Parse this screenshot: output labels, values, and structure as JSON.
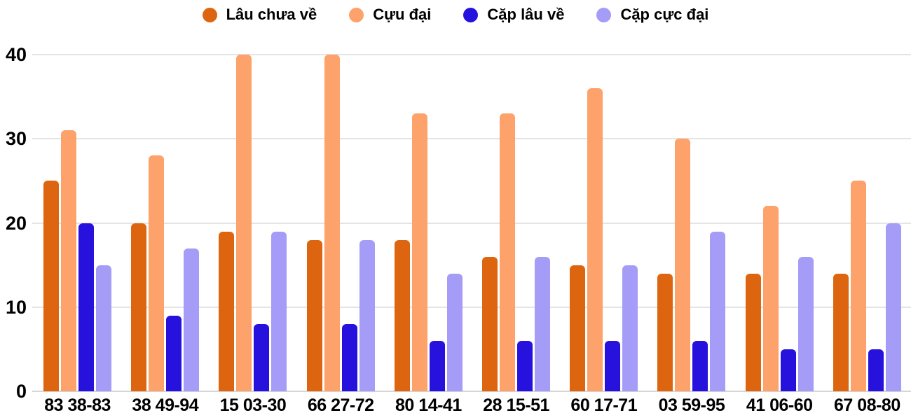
{
  "chart_data": {
    "type": "bar",
    "title": "",
    "xlabel": "",
    "ylabel": "",
    "categories": [
      "83 38-83",
      "38 49-94",
      "15 03-30",
      "66 27-72",
      "80 14-41",
      "28 15-51",
      "60 17-71",
      "03 59-95",
      "41 06-60",
      "67 08-80"
    ],
    "series": [
      {
        "name": "Lâu chưa về",
        "color": "#DE650F",
        "values": [
          25,
          20,
          19,
          18,
          18,
          16,
          15,
          14,
          14,
          14
        ]
      },
      {
        "name": "Cựu đại",
        "color": "#FCA26A",
        "values": [
          31,
          28,
          40,
          40,
          33,
          33,
          36,
          30,
          22,
          25
        ]
      },
      {
        "name": "Cặp lâu về",
        "color": "#2712DD",
        "values": [
          20,
          9,
          8,
          8,
          6,
          6,
          6,
          6,
          5,
          5
        ]
      },
      {
        "name": "Cặp cực đại",
        "color": "#A49CF6",
        "values": [
          15,
          17,
          19,
          18,
          14,
          16,
          15,
          19,
          16,
          20
        ]
      }
    ],
    "ylim": [
      0,
      40
    ],
    "yticks": [
      0,
      10,
      20,
      30,
      40
    ],
    "legend_position": "top",
    "grid": true
  },
  "colors": {
    "background": "#ffffff",
    "gridline": "#e4e4e4",
    "baseline": "#d6d6d6",
    "axis_text": "#000000"
  }
}
